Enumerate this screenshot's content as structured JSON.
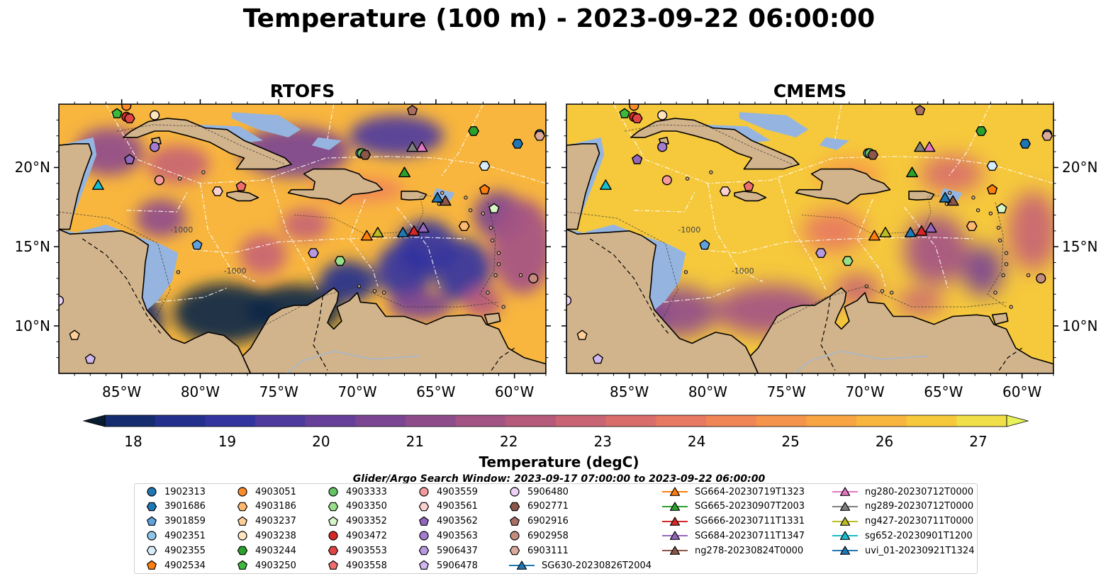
{
  "figure": {
    "title": "Temperature (100 m) - 2023-09-22 06:00:00"
  },
  "panels": [
    {
      "id": "rtofs",
      "title": "RTOFS",
      "variant": "rtofs"
    },
    {
      "id": "cmems",
      "title": "CMEMS",
      "variant": "cmems"
    }
  ],
  "colors": {
    "land": "#d2b48c",
    "shelf": "#95b5e0",
    "cmap": [
      "#071d2f",
      "#0b2747",
      "#152c6e",
      "#23318d",
      "#33349f",
      "#4e3a9e",
      "#663f9a",
      "#7b4593",
      "#8f4c8b",
      "#a35384",
      "#b65a7c",
      "#c86474",
      "#d86d6b",
      "#e77861",
      "#f08556",
      "#f5944b",
      "#f8a443",
      "#f8b63e",
      "#f6c93c",
      "#f0df49",
      "#e8f25a"
    ]
  },
  "colorbar": {
    "label": "Temperature (degC)",
    "ticks": [
      "18",
      "19",
      "20",
      "21",
      "22",
      "23",
      "24",
      "25",
      "26",
      "27"
    ]
  },
  "chart_data": {
    "type": "heatmap",
    "title": "Temperature (100 m) - 2023-09-22 06:00:00",
    "panels": [
      "RTOFS",
      "CMEMS"
    ],
    "variable": "Temperature (degC)",
    "depth": "100 m",
    "lon_range": [
      -89,
      -58
    ],
    "lat_range": [
      7,
      24
    ],
    "x_ticks": [
      "85°W",
      "80°W",
      "75°W",
      "70°W",
      "65°W",
      "60°W"
    ],
    "x_tick_values": [
      -85,
      -80,
      -75,
      -70,
      -65,
      -60
    ],
    "y_ticks": [
      "10°N",
      "15°N",
      "20°N"
    ],
    "y_tick_values": [
      10,
      15,
      20
    ],
    "color_range": [
      18,
      27
    ],
    "colorbar_ticks": [
      18,
      19,
      20,
      21,
      22,
      23,
      24,
      25,
      26,
      27
    ],
    "contour_label": "-1000",
    "observations": [
      {
        "name": "1902313",
        "lon": -58.4,
        "lat": 22.1,
        "marker": "circle",
        "color": "#1f77b4"
      },
      {
        "name": "3901686",
        "lon": -59.8,
        "lat": 21.5,
        "marker": "hexagon",
        "color": "#1f77b4"
      },
      {
        "name": "3901859",
        "lon": -80.2,
        "lat": 15.1,
        "marker": "pentagon",
        "color": "#5fa2dd"
      },
      {
        "name": "4902351",
        "lon": -69.8,
        "lat": 20.9,
        "marker": "circle",
        "color": "#8ec6ea"
      },
      {
        "name": "4902355",
        "lon": -61.9,
        "lat": 20.1,
        "marker": "hexagon",
        "color": "#d7ecfa"
      },
      {
        "name": "4902534",
        "lon": -61.9,
        "lat": 18.6,
        "marker": "pentagon",
        "color": "#ff7f0e"
      },
      {
        "name": "4903051",
        "lon": -84.7,
        "lat": 23.9,
        "marker": "circle",
        "color": "#ff8c2a"
      },
      {
        "name": "4903186",
        "lon": -63.2,
        "lat": 16.3,
        "marker": "hexagon",
        "color": "#ffb870"
      },
      {
        "name": "4903237",
        "lon": -88.0,
        "lat": 9.4,
        "marker": "pentagon",
        "color": "#ffcf98"
      },
      {
        "name": "4903238",
        "lon": -82.9,
        "lat": 23.3,
        "marker": "circle",
        "color": "#ffe4c0"
      },
      {
        "name": "4903244",
        "lon": -62.6,
        "lat": 22.3,
        "marker": "hexagon",
        "color": "#2ca02c"
      },
      {
        "name": "4903250",
        "lon": -85.3,
        "lat": 23.4,
        "marker": "pentagon",
        "color": "#3cb93c"
      },
      {
        "name": "4903333",
        "lon": -69.7,
        "lat": 20.9,
        "marker": "circle",
        "color": "#63c463"
      },
      {
        "name": "4903350",
        "lon": -71.1,
        "lat": 14.1,
        "marker": "hexagon",
        "color": "#98df8a"
      },
      {
        "name": "4903352",
        "lon": -61.3,
        "lat": 17.4,
        "marker": "pentagon",
        "color": "#d7f5c8"
      },
      {
        "name": "4903472",
        "lon": -84.7,
        "lat": 23.2,
        "marker": "circle",
        "color": "#d62728"
      },
      {
        "name": "4903553",
        "lon": -84.5,
        "lat": 23.1,
        "marker": "hexagon",
        "color": "#e04545"
      },
      {
        "name": "4903558",
        "lon": -77.4,
        "lat": 18.8,
        "marker": "pentagon",
        "color": "#ef6e6e"
      },
      {
        "name": "4903559",
        "lon": -82.6,
        "lat": 19.2,
        "marker": "circle",
        "color": "#f59b9b"
      },
      {
        "name": "4903561",
        "lon": -78.9,
        "lat": 18.5,
        "marker": "hexagon",
        "color": "#fbd0d0"
      },
      {
        "name": "4903562",
        "lon": -84.5,
        "lat": 20.5,
        "marker": "pentagon",
        "color": "#9467bd"
      },
      {
        "name": "4903563",
        "lon": -82.9,
        "lat": 21.3,
        "marker": "circle",
        "color": "#a57dd0"
      },
      {
        "name": "5906437",
        "lon": -72.8,
        "lat": 14.6,
        "marker": "hexagon",
        "color": "#b79ae0"
      },
      {
        "name": "5906478",
        "lon": -87.0,
        "lat": 7.9,
        "marker": "pentagon",
        "color": "#d2b8f0"
      },
      {
        "name": "5906480",
        "lon": -89.0,
        "lat": 11.6,
        "marker": "circle",
        "color": "#ecd2f8"
      },
      {
        "name": "6902771",
        "lon": -69.5,
        "lat": 20.8,
        "marker": "hexagon",
        "color": "#8c564b"
      },
      {
        "name": "6902916",
        "lon": -66.5,
        "lat": 23.6,
        "marker": "pentagon",
        "color": "#a96f64"
      },
      {
        "name": "6902958",
        "lon": -58.8,
        "lat": 13.0,
        "marker": "circle",
        "color": "#c48b7f"
      },
      {
        "name": "6903111",
        "lon": -58.4,
        "lat": 22.0,
        "marker": "hexagon",
        "color": "#dcaa9d"
      }
    ],
    "gliders": [
      {
        "name": "SG630-20230826T2004",
        "lon": -67.1,
        "lat": 15.9,
        "color": "#1f77b4"
      },
      {
        "name": "SG664-20230719T1323",
        "lon": -69.4,
        "lat": 15.7,
        "color": "#ff7f0e"
      },
      {
        "name": "SG665-20230907T2003",
        "lon": -67.0,
        "lat": 19.7,
        "color": "#2ca02c"
      },
      {
        "name": "SG666-20230711T1331",
        "lon": -66.4,
        "lat": 16.0,
        "color": "#d62728"
      },
      {
        "name": "SG684-20230711T1347",
        "lon": -65.8,
        "lat": 16.2,
        "color": "#9467bd"
      },
      {
        "name": "ng278-20230824T0000",
        "lon": -64.4,
        "lat": 17.9,
        "color": "#8c564b"
      },
      {
        "name": "ng280-20230712T0000",
        "lon": -65.9,
        "lat": 21.3,
        "color": "#e377c2"
      },
      {
        "name": "ng289-20230712T0000",
        "lon": -66.5,
        "lat": 21.3,
        "color": "#7f7f7f"
      },
      {
        "name": "ng427-20230711T0000",
        "lon": -68.7,
        "lat": 15.9,
        "color": "#bcbd22"
      },
      {
        "name": "sg652-20230901T1200",
        "lon": -86.5,
        "lat": 18.9,
        "color": "#17becf"
      },
      {
        "name": "uvi_01-20230921T1324",
        "lon": -64.9,
        "lat": 18.1,
        "color": "#1f77b4"
      }
    ]
  },
  "legend": {
    "title": "Glider/Argo Search Window: 2023-09-17 07:00:00 to 2023-09-22 06:00:00"
  }
}
